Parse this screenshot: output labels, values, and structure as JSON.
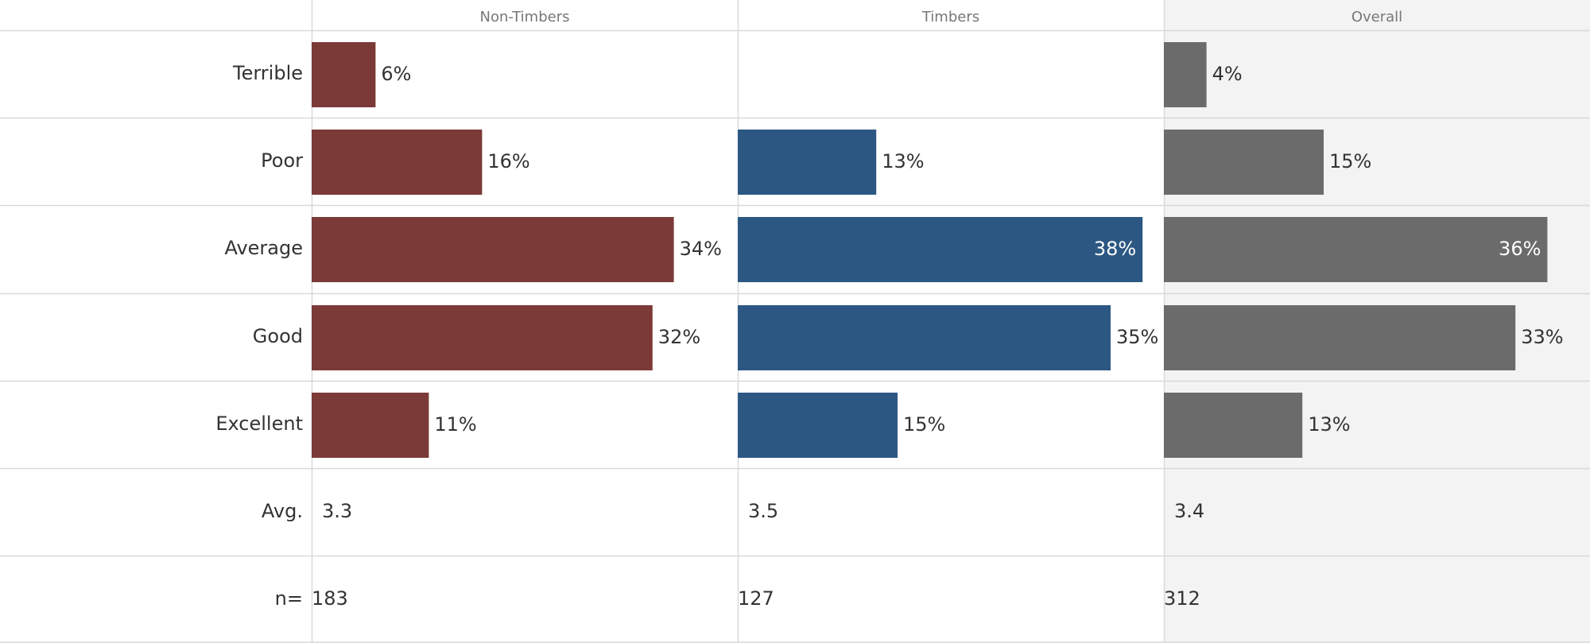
{
  "chart_data": {
    "type": "bar",
    "orientation": "horizontal",
    "categories": [
      "Terrible",
      "Poor",
      "Average",
      "Good",
      "Excellent"
    ],
    "xlim": [
      0,
      45
    ],
    "series": [
      {
        "name": "Non-Timbers",
        "color": "#7B3A37",
        "values": [
          6,
          16,
          34,
          32,
          11
        ],
        "labels": [
          "6%",
          "16%",
          "34%",
          "32%",
          "11%"
        ]
      },
      {
        "name": "Timbers",
        "color": "#2C5783",
        "values": [
          null,
          13,
          38,
          35,
          15
        ],
        "labels": [
          "",
          "13%",
          "38%",
          "35%",
          "15%"
        ]
      },
      {
        "name": "Overall",
        "color": "#6B6B6B",
        "values": [
          4,
          15,
          36,
          33,
          13
        ],
        "labels": [
          "4%",
          "15%",
          "36%",
          "33%",
          "13%"
        ]
      }
    ],
    "summary_rows": [
      {
        "label": "Avg.",
        "values": [
          "3.3",
          "3.5",
          "3.4"
        ]
      },
      {
        "label": "n=",
        "values": [
          "183",
          "127",
          "312"
        ]
      }
    ],
    "grid": true,
    "highlight_column": "Overall",
    "highlight_color": "#F3F3F3"
  }
}
